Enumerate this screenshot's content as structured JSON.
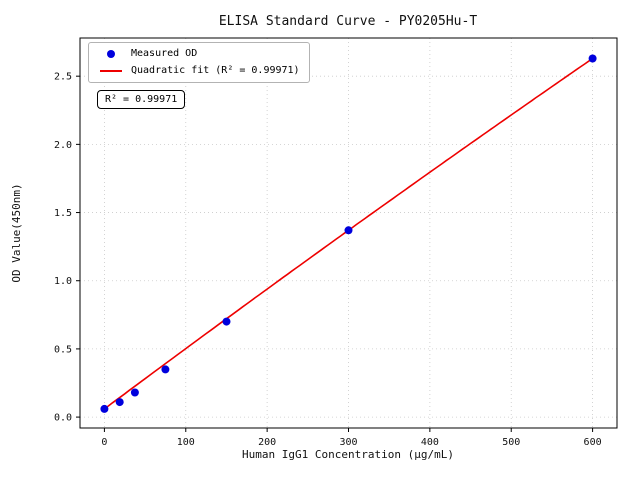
{
  "chart_data": {
    "type": "scatter",
    "title": "ELISA Standard Curve - PY0205Hu-T",
    "xlabel": "Human IgG1 Concentration (μg/mL)",
    "ylabel": "OD Value(450nm)",
    "xlim": [
      -30,
      630
    ],
    "ylim": [
      -0.08,
      2.78
    ],
    "xticks": [
      0,
      100,
      200,
      300,
      400,
      500,
      600
    ],
    "yticks": [
      0.0,
      0.5,
      1.0,
      1.5,
      2.0,
      2.5
    ],
    "grid": true,
    "legend_position": "upper left",
    "annotation": "R² = 0.99971",
    "series": [
      {
        "name": "Measured OD",
        "type": "scatter",
        "color": "#0000dd",
        "x": [
          0,
          18.75,
          37.5,
          75,
          150,
          300,
          600
        ],
        "y": [
          0.06,
          0.11,
          0.18,
          0.35,
          0.7,
          1.37,
          2.63
        ]
      },
      {
        "name": "Quadratic fit (R² = 0.99971)",
        "type": "line",
        "color": "#ee0000",
        "fit": {
          "a": -2.78e-07,
          "b": 0.00445,
          "c": 0.06,
          "x_start": 0,
          "x_end": 600
        }
      }
    ]
  }
}
